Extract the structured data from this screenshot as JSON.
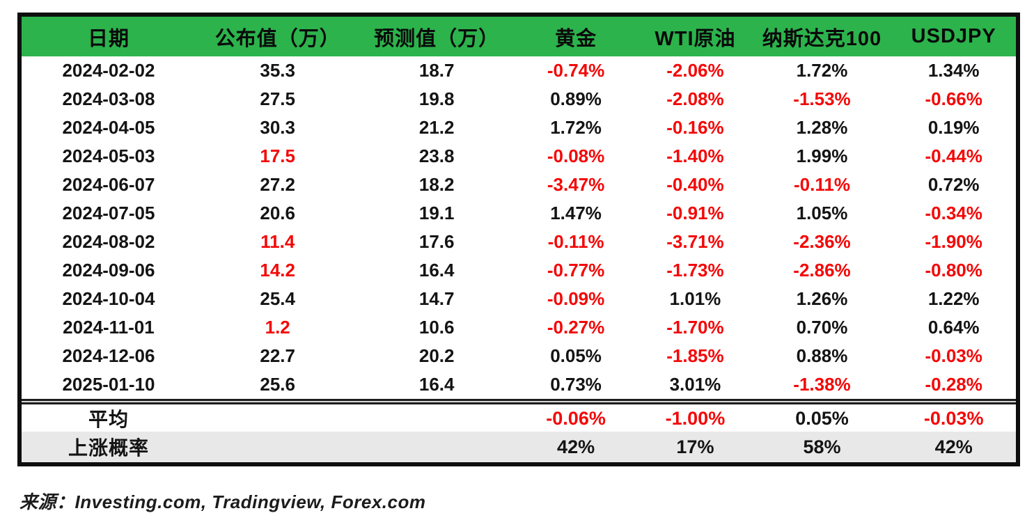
{
  "chart_data": {
    "type": "table",
    "columns": [
      "日期",
      "公布值（万）",
      "预测值（万）",
      "黄金",
      "WTI原油",
      "纳斯达克100",
      "USDJPY"
    ],
    "rows": [
      [
        "2024-02-02",
        "35.3",
        "18.7",
        "-0.74%",
        "-2.06%",
        "1.72%",
        "1.34%"
      ],
      [
        "2024-03-08",
        "27.5",
        "19.8",
        "0.89%",
        "-2.08%",
        "-1.53%",
        "-0.66%"
      ],
      [
        "2024-04-05",
        "30.3",
        "21.2",
        "1.72%",
        "-0.16%",
        "1.28%",
        "0.19%"
      ],
      [
        "2024-05-03",
        "17.5",
        "23.8",
        "-0.08%",
        "-1.40%",
        "1.99%",
        "-0.44%"
      ],
      [
        "2024-06-07",
        "27.2",
        "18.2",
        "-3.47%",
        "-0.40%",
        "-0.11%",
        "0.72%"
      ],
      [
        "2024-07-05",
        "20.6",
        "19.1",
        "1.47%",
        "-0.91%",
        "1.05%",
        "-0.34%"
      ],
      [
        "2024-08-02",
        "11.4",
        "17.6",
        "-0.11%",
        "-3.71%",
        "-2.36%",
        "-1.90%"
      ],
      [
        "2024-09-06",
        "14.2",
        "16.4",
        "-0.77%",
        "-1.73%",
        "-2.86%",
        "-0.80%"
      ],
      [
        "2024-10-04",
        "25.4",
        "14.7",
        "-0.09%",
        "1.01%",
        "1.26%",
        "1.22%"
      ],
      [
        "2024-11-01",
        "1.2",
        "10.6",
        "-0.27%",
        "-1.70%",
        "0.70%",
        "0.64%"
      ],
      [
        "2024-12-06",
        "22.7",
        "20.2",
        "0.05%",
        "-1.85%",
        "0.88%",
        "-0.03%"
      ],
      [
        "2025-01-10",
        "25.6",
        "16.4",
        "0.73%",
        "3.01%",
        "-1.38%",
        "-0.28%"
      ]
    ],
    "summary_rows": [
      {
        "cells": [
          "平均",
          "",
          "",
          "-0.06%",
          "-1.00%",
          "0.05%",
          "-0.03%"
        ],
        "shaded": false
      },
      {
        "cells": [
          "上涨概率",
          "",
          "",
          "42%",
          "17%",
          "58%",
          "42%"
        ],
        "shaded": true
      }
    ],
    "conditional_format": "negative percentages and published values below forecast are shown in red",
    "legend_position": "none",
    "grid": false
  },
  "footer": {
    "source_label": "来源：",
    "source_text": "Investing.com, Tradingview, Forex.com"
  },
  "colors": {
    "header_bg": "#2cb34c",
    "negative_text": "#f40707",
    "default_text": "#141414",
    "shaded_row_bg": "#e8e8e8",
    "border": "#0e0e0e"
  }
}
